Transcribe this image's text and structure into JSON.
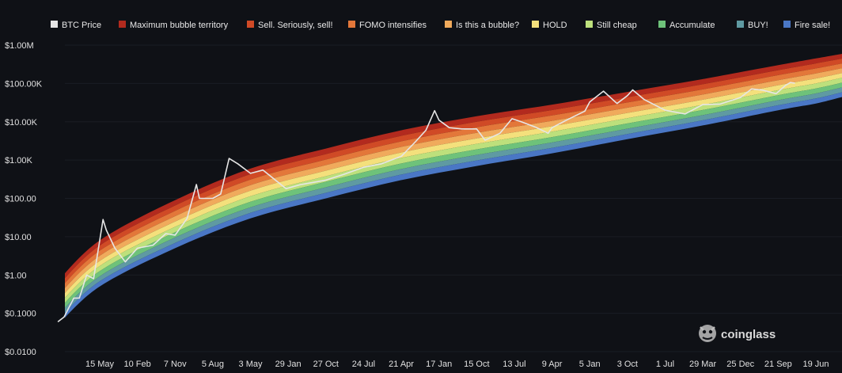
{
  "chart_data": {
    "type": "area",
    "title": "",
    "xlabel": "",
    "ylabel": "",
    "y_scale": "log",
    "ylim": [
      0.01,
      1000000
    ],
    "y_ticks": [
      0.01,
      0.1,
      1,
      10,
      100,
      1000,
      10000,
      100000,
      1000000
    ],
    "y_tick_labels": [
      "$0.0100",
      "$0.1000",
      "$1.00",
      "$10.00",
      "$100.00",
      "$1.00K",
      "$10.00K",
      "$100.00K",
      "$1.00M"
    ],
    "x_tick_labels": [
      "15 May",
      "10 Feb",
      "7 Nov",
      "5 Aug",
      "3 May",
      "29 Jan",
      "27 Oct",
      "24 Jul",
      "21 Apr",
      "17 Jan",
      "15 Oct",
      "13 Jul",
      "9 Apr",
      "5 Jan",
      "3 Oct",
      "1 Jul",
      "29 Mar",
      "25 Dec",
      "21 Sep",
      "19 Jun"
    ],
    "x_tick_dates": [
      "2011-05-15",
      "2012-02-10",
      "2012-11-07",
      "2013-08-05",
      "2014-05-03",
      "2015-01-29",
      "2015-10-27",
      "2016-07-24",
      "2017-04-21",
      "2018-01-17",
      "2018-10-15",
      "2019-07-13",
      "2020-04-09",
      "2021-01-05",
      "2021-10-03",
      "2022-07-01",
      "2023-03-29",
      "2023-12-25",
      "2024-09-21",
      "2025-06-19"
    ],
    "legend_position": "top",
    "legend": [
      {
        "name": "BTC Price",
        "color": "#e6e6e6"
      },
      {
        "name": "Maximum bubble territory",
        "color": "#b22a1e"
      },
      {
        "name": "Sell. Seriously, sell!",
        "color": "#d04a26"
      },
      {
        "name": "FOMO intensifies",
        "color": "#e3773a"
      },
      {
        "name": "Is this a bubble?",
        "color": "#f0aa5c"
      },
      {
        "name": "HOLD",
        "color": "#f4e07c"
      },
      {
        "name": "Still cheap",
        "color": "#bde07c"
      },
      {
        "name": "Accumulate",
        "color": "#6ec27a"
      },
      {
        "name": "BUY!",
        "color": "#5f9aa2"
      },
      {
        "name": "Fire sale!",
        "color": "#4a77c5"
      }
    ],
    "bands_series": [
      {
        "date": "2010-07-18",
        "lower": 0.05,
        "upper": 0.7
      },
      {
        "date": "2011-05-15",
        "lower": 0.5,
        "upper": 8
      },
      {
        "date": "2012-11-07",
        "lower": 5,
        "upper": 90
      },
      {
        "date": "2014-05-03",
        "lower": 30,
        "upper": 600
      },
      {
        "date": "2015-10-27",
        "lower": 100,
        "upper": 2000
      },
      {
        "date": "2017-04-21",
        "lower": 300,
        "upper": 6000
      },
      {
        "date": "2018-10-15",
        "lower": 700,
        "upper": 14000
      },
      {
        "date": "2020-04-09",
        "lower": 1500,
        "upper": 28000
      },
      {
        "date": "2021-10-03",
        "lower": 3500,
        "upper": 60000
      },
      {
        "date": "2023-03-29",
        "lower": 8000,
        "upper": 130000
      },
      {
        "date": "2024-09-21",
        "lower": 20000,
        "upper": 300000
      },
      {
        "date": "2025-06-19",
        "lower": 30000,
        "upper": 450000
      },
      {
        "date": "2026-01-01",
        "lower": 45000,
        "upper": 600000
      }
    ],
    "series": [
      {
        "name": "BTC Price",
        "points": [
          [
            "2010-07-18",
            0.06
          ],
          [
            "2010-09-01",
            0.08
          ],
          [
            "2010-11-10",
            0.25
          ],
          [
            "2010-12-20",
            0.25
          ],
          [
            "2011-02-10",
            1.0
          ],
          [
            "2011-04-01",
            0.8
          ],
          [
            "2011-05-15",
            8
          ],
          [
            "2011-06-08",
            28
          ],
          [
            "2011-07-01",
            15
          ],
          [
            "2011-09-01",
            5
          ],
          [
            "2011-11-15",
            2.2
          ],
          [
            "2012-02-10",
            5
          ],
          [
            "2012-06-01",
            6
          ],
          [
            "2012-09-01",
            12
          ],
          [
            "2012-11-07",
            11
          ],
          [
            "2013-02-01",
            30
          ],
          [
            "2013-04-09",
            230
          ],
          [
            "2013-05-01",
            100
          ],
          [
            "2013-08-05",
            100
          ],
          [
            "2013-10-01",
            130
          ],
          [
            "2013-11-30",
            1100
          ],
          [
            "2014-02-01",
            800
          ],
          [
            "2014-05-03",
            450
          ],
          [
            "2014-08-01",
            550
          ],
          [
            "2015-01-14",
            180
          ],
          [
            "2015-05-01",
            230
          ],
          [
            "2015-10-27",
            300
          ],
          [
            "2016-03-01",
            420
          ],
          [
            "2016-07-24",
            650
          ],
          [
            "2016-12-01",
            800
          ],
          [
            "2017-04-21",
            1250
          ],
          [
            "2017-08-01",
            3000
          ],
          [
            "2017-10-15",
            6000
          ],
          [
            "2017-12-17",
            19500
          ],
          [
            "2018-01-17",
            11000
          ],
          [
            "2018-04-01",
            7000
          ],
          [
            "2018-07-01",
            6500
          ],
          [
            "2018-10-15",
            6500
          ],
          [
            "2018-12-15",
            3300
          ],
          [
            "2019-04-01",
            5000
          ],
          [
            "2019-06-26",
            12000
          ],
          [
            "2019-09-01",
            10000
          ],
          [
            "2019-12-15",
            7200
          ],
          [
            "2020-03-12",
            5000
          ],
          [
            "2020-04-09",
            7000
          ],
          [
            "2020-08-01",
            11500
          ],
          [
            "2020-12-01",
            19000
          ],
          [
            "2021-01-05",
            33000
          ],
          [
            "2021-04-14",
            63000
          ],
          [
            "2021-07-20",
            30000
          ],
          [
            "2021-10-03",
            48000
          ],
          [
            "2021-11-10",
            68000
          ],
          [
            "2022-02-01",
            38000
          ],
          [
            "2022-07-01",
            20000
          ],
          [
            "2022-11-21",
            16000
          ],
          [
            "2023-03-29",
            28000
          ],
          [
            "2023-08-01",
            29000
          ],
          [
            "2023-12-25",
            43000
          ],
          [
            "2024-03-14",
            72000
          ],
          [
            "2024-06-01",
            67000
          ],
          [
            "2024-09-06",
            54000
          ],
          [
            "2024-11-11",
            88000
          ],
          [
            "2024-12-17",
            106000
          ],
          [
            "2025-01-20",
            102000
          ]
        ]
      }
    ]
  },
  "brand": {
    "name": "coinglass",
    "icon": "coinglass-logo-icon"
  }
}
